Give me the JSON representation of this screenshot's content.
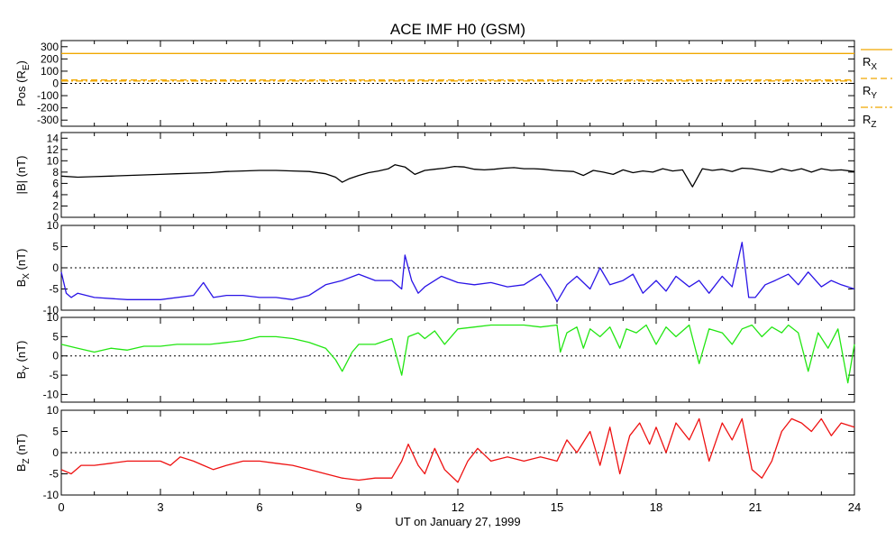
{
  "title": "ACE IMF H0 (GSM)",
  "xlabel": "UT on January 27, 1999",
  "x_ticks": [
    "0",
    "3",
    "6",
    "9",
    "12",
    "15",
    "18",
    "21",
    "24"
  ],
  "chart_data": [
    {
      "type": "line",
      "ylabel_main": "Pos (R",
      "ylabel_sub": "E",
      "ylabel_end": ")",
      "ylim": [
        -350,
        350
      ],
      "y_ticks": [
        300,
        200,
        100,
        0,
        -100,
        -200,
        -300
      ],
      "zero_line": true,
      "legend_placement": "right",
      "series": [
        {
          "name": "X",
          "color": "#f0a800",
          "style": "solid",
          "x": [
            0,
            24
          ],
          "y": [
            245,
            245
          ]
        },
        {
          "name": "Y",
          "color": "#f0a800",
          "style": "dashed",
          "x": [
            0,
            24
          ],
          "y": [
            28,
            28
          ]
        },
        {
          "name": "Z",
          "color": "#f0a800",
          "style": "dashdot",
          "x": [
            0,
            24
          ],
          "y": [
            20,
            20
          ]
        }
      ],
      "legend": [
        {
          "main": "R",
          "sub": "X"
        },
        {
          "main": "R",
          "sub": "Y"
        },
        {
          "main": "R",
          "sub": "Z"
        }
      ]
    },
    {
      "type": "line",
      "ylabel_main": "|B| (nT)",
      "ylabel_sub": "",
      "ylabel_end": "",
      "ylim": [
        0,
        15
      ],
      "y_ticks": [
        14,
        12,
        10,
        8,
        6,
        4,
        2,
        0
      ],
      "zero_line": false,
      "series": [
        {
          "color": "#000000",
          "x": [
            0,
            0.5,
            1,
            1.5,
            2,
            2.5,
            3,
            3.5,
            4,
            4.5,
            5,
            5.5,
            6,
            6.5,
            7,
            7.5,
            8,
            8.3,
            8.5,
            8.7,
            9,
            9.3,
            9.6,
            9.9,
            10.1,
            10.4,
            10.7,
            11,
            11.3,
            11.6,
            11.9,
            12.2,
            12.5,
            12.8,
            13.1,
            13.4,
            13.7,
            14,
            14.3,
            14.6,
            14.9,
            15.2,
            15.5,
            15.8,
            16.1,
            16.4,
            16.7,
            17,
            17.3,
            17.6,
            17.9,
            18.2,
            18.5,
            18.8,
            19.1,
            19.4,
            19.7,
            20,
            20.3,
            20.6,
            20.9,
            21.2,
            21.5,
            21.8,
            22.1,
            22.4,
            22.7,
            23,
            23.3,
            23.6,
            24
          ],
          "y": [
            7.3,
            7.1,
            7.2,
            7.3,
            7.4,
            7.5,
            7.6,
            7.7,
            7.8,
            7.9,
            8.1,
            8.2,
            8.3,
            8.3,
            8.2,
            8.1,
            7.7,
            7.1,
            6.2,
            6.8,
            7.4,
            7.9,
            8.2,
            8.6,
            9.3,
            8.9,
            7.6,
            8.3,
            8.5,
            8.7,
            9,
            8.9,
            8.5,
            8.4,
            8.5,
            8.7,
            8.8,
            8.6,
            8.6,
            8.5,
            8.3,
            8.2,
            8.1,
            7.4,
            8.3,
            8.0,
            7.6,
            8.4,
            7.9,
            8.2,
            8.0,
            8.6,
            8.2,
            8.4,
            5.4,
            8.6,
            8.3,
            8.5,
            8.1,
            8.7,
            8.6,
            8.3,
            8.0,
            8.6,
            8.2,
            8.6,
            8.0,
            8.6,
            8.3,
            8.4,
            8.1
          ]
        }
      ]
    },
    {
      "type": "line",
      "ylabel_main": "B",
      "ylabel_sub": "X",
      "ylabel_end": " (nT)",
      "ylim": [
        -10,
        10
      ],
      "y_ticks": [
        10,
        5,
        0,
        -5,
        -10
      ],
      "zero_line": true,
      "series": [
        {
          "color": "#2a14e6",
          "x": [
            0,
            0.15,
            0.3,
            0.5,
            1,
            2,
            3,
            4,
            4.3,
            4.6,
            5,
            5.5,
            6,
            6.5,
            7,
            7.5,
            8,
            8.5,
            9,
            9.5,
            10,
            10.3,
            10.4,
            10.6,
            10.8,
            11,
            11.5,
            12,
            12.5,
            13,
            13.5,
            14,
            14.5,
            14.8,
            15,
            15.3,
            15.6,
            16,
            16.3,
            16.6,
            17,
            17.3,
            17.6,
            18,
            18.3,
            18.6,
            19,
            19.3,
            19.6,
            20,
            20.3,
            20.6,
            20.8,
            21,
            21.3,
            21.6,
            22,
            22.3,
            22.6,
            23,
            23.3,
            23.6,
            24
          ],
          "y": [
            -1,
            -6,
            -7,
            -6,
            -7,
            -7.5,
            -7.5,
            -6.5,
            -3.5,
            -7,
            -6.5,
            -6.5,
            -7,
            -7,
            -7.5,
            -6.5,
            -4,
            -3,
            -1.5,
            -3,
            -3,
            -5,
            3,
            -3,
            -6,
            -4.5,
            -2,
            -3.5,
            -4,
            -3.5,
            -4.5,
            -4,
            -1.5,
            -5,
            -8,
            -4,
            -2,
            -5,
            0,
            -4,
            -3,
            -1.5,
            -6,
            -3,
            -5.5,
            -2,
            -4.5,
            -3,
            -6,
            -2,
            -4.5,
            6,
            -7,
            -7,
            -4,
            -3,
            -1.5,
            -4,
            -1,
            -4.5,
            -3,
            -4,
            -5
          ]
        }
      ]
    },
    {
      "type": "line",
      "ylabel_main": "B",
      "ylabel_sub": "Y",
      "ylabel_end": " (nT)",
      "ylim": [
        -12,
        10
      ],
      "y_ticks": [
        10,
        5,
        0,
        -5,
        -10
      ],
      "zero_line": true,
      "series": [
        {
          "color": "#22e612",
          "x": [
            0,
            0.5,
            1,
            1.5,
            2,
            2.5,
            3,
            3.5,
            4,
            4.5,
            5,
            5.5,
            6,
            6.5,
            7,
            7.5,
            8,
            8.3,
            8.5,
            8.8,
            9,
            9.5,
            10,
            10.3,
            10.5,
            10.8,
            11,
            11.3,
            11.6,
            12,
            12.5,
            13,
            13.5,
            14,
            14.5,
            15,
            15.1,
            15.3,
            15.6,
            15.8,
            16,
            16.3,
            16.6,
            16.9,
            17.1,
            17.4,
            17.7,
            18,
            18.3,
            18.6,
            19,
            19.3,
            19.6,
            20,
            20.3,
            20.6,
            20.9,
            21.2,
            21.5,
            21.8,
            22,
            22.3,
            22.6,
            22.9,
            23.2,
            23.5,
            23.8,
            24
          ],
          "y": [
            3,
            2,
            1,
            2,
            1.5,
            2.5,
            2.5,
            3,
            3,
            3,
            3.5,
            4,
            5,
            5,
            4.5,
            3.5,
            2,
            -1,
            -4,
            1,
            3,
            3,
            4.5,
            -5,
            5,
            6,
            4.5,
            6.5,
            3,
            7,
            7.5,
            8,
            8,
            8,
            7.5,
            8,
            1,
            6,
            7.5,
            2,
            7,
            5,
            7.5,
            2,
            7,
            6,
            8,
            3,
            7.5,
            5,
            8,
            -2,
            7,
            6,
            3,
            7,
            8,
            5,
            7.5,
            6,
            8,
            6,
            -4,
            6,
            2,
            7,
            -7,
            3
          ]
        }
      ]
    },
    {
      "type": "line",
      "ylabel_main": "B",
      "ylabel_sub": "Z",
      "ylabel_end": " (nT)",
      "ylim": [
        -10,
        10
      ],
      "y_ticks": [
        10,
        5,
        0,
        -5,
        -10
      ],
      "zero_line": true,
      "series": [
        {
          "color": "#ee1111",
          "x": [
            0,
            0.3,
            0.6,
            1,
            1.5,
            2,
            2.5,
            3,
            3.3,
            3.6,
            4,
            4.3,
            4.6,
            5,
            5.5,
            6,
            6.5,
            7,
            7.5,
            8,
            8.5,
            9,
            9.5,
            10,
            10.3,
            10.5,
            10.8,
            11,
            11.3,
            11.6,
            12,
            12.3,
            12.6,
            13,
            13.5,
            14,
            14.5,
            15,
            15.3,
            15.6,
            16,
            16.3,
            16.6,
            16.9,
            17.2,
            17.5,
            17.8,
            18,
            18.3,
            18.6,
            19,
            19.3,
            19.6,
            20,
            20.3,
            20.6,
            20.9,
            21.2,
            21.5,
            21.8,
            22.1,
            22.4,
            22.7,
            23,
            23.3,
            23.6,
            24
          ],
          "y": [
            -4,
            -5,
            -3,
            -3,
            -2.5,
            -2,
            -2,
            -2,
            -3,
            -1,
            -2,
            -3,
            -4,
            -3,
            -2,
            -2,
            -2.5,
            -3,
            -4,
            -5,
            -6,
            -6.5,
            -6,
            -6,
            -2,
            2,
            -3,
            -5,
            1,
            -4,
            -7,
            -2,
            1,
            -2,
            -1,
            -2,
            -1,
            -2,
            3,
            0,
            5,
            -3,
            6,
            -5,
            4,
            7,
            2,
            6,
            0,
            7,
            3,
            8,
            -2,
            7,
            3,
            8,
            -4,
            -6,
            -2,
            5,
            8,
            7,
            5,
            8,
            4,
            7,
            6
          ]
        }
      ]
    }
  ]
}
